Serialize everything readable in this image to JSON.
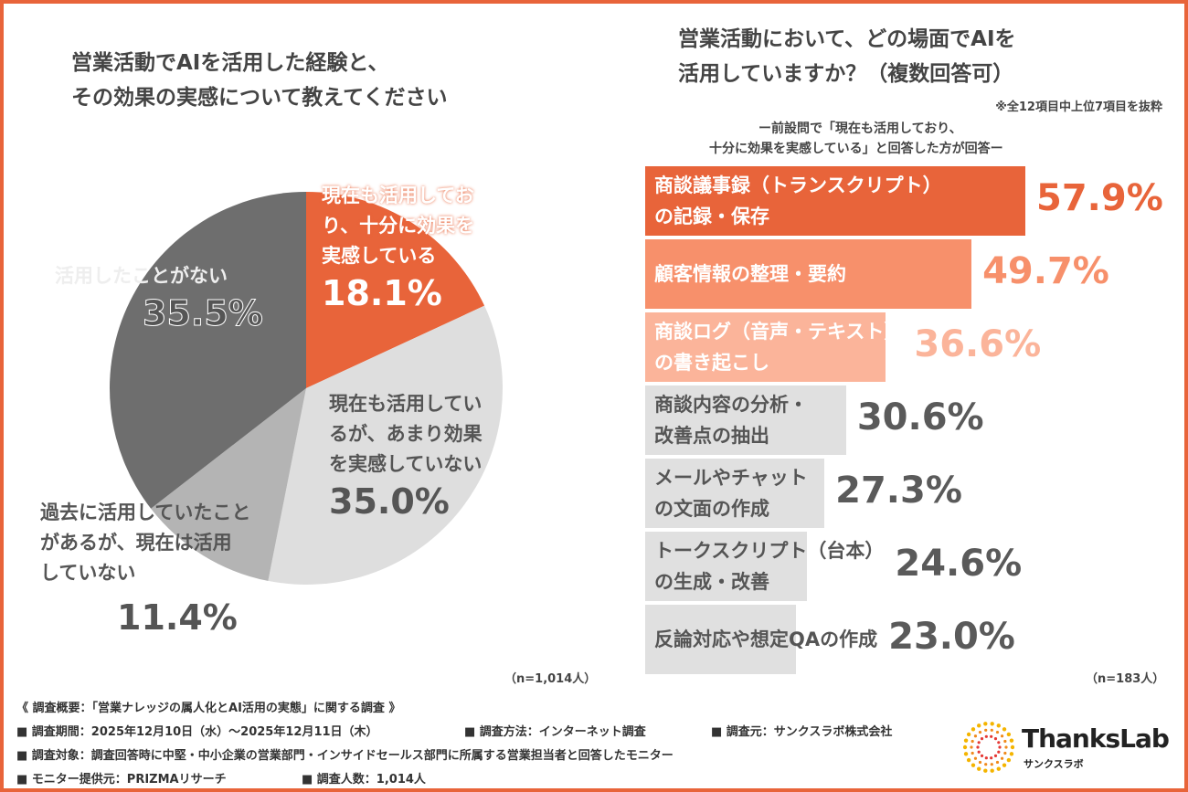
{
  "left": {
    "title": "営業活動でAIを活用した経験と、\nその効果の実感について教えてください",
    "n": "（n=1,014人）"
  },
  "right": {
    "title": "営業活動において、どの場面でAIを\n活用していますか？（複数回答可）",
    "note": "※全12項目中上位7項目を抜粋",
    "subnote1": "ー前設問で「現在も活用しており、",
    "subnote2": "十分に効果を実感している」と回答した方が回答ー",
    "n": "（n=183人）"
  },
  "chart_data": [
    {
      "type": "pie",
      "title": "営業活動でAIを活用した経験と、その効果の実感について教えてください",
      "slices": [
        {
          "label": "現在も活用しており、十分に効果を実感している",
          "value": 18.1,
          "display": "18.1%",
          "color": "#e8643a"
        },
        {
          "label": "現在も活用しているが、あまり効果を実感していない",
          "value": 35.0,
          "display": "35.0%",
          "color": "#dedede"
        },
        {
          "label": "過去に活用していたことがあるが、現在は活用していない",
          "value": 11.4,
          "display": "11.4%",
          "color": "#b4b4b4"
        },
        {
          "label": "活用したことがない",
          "value": 35.5,
          "display": "35.5%",
          "color": "#6e6e6e"
        }
      ]
    },
    {
      "type": "bar",
      "orientation": "horizontal",
      "title": "営業活動において、どの場面でAIを活用していますか？（複数回答可）",
      "categories": [
        "商談議事録（トランスクリプト）\nの記録・保存",
        "顧客情報の整理・要約",
        "商談ログ（音声・テキスト）\nの書き起こし",
        "商談内容の分析・\n改善点の抽出",
        "メールやチャット\nの文面の作成",
        "トークスクリプト（台本）\nの生成・改善",
        "反論対応や想定QAの作成"
      ],
      "values": [
        57.9,
        49.7,
        36.6,
        30.6,
        27.3,
        24.6,
        23.0
      ],
      "display": [
        "57.9%",
        "49.7%",
        "36.6%",
        "30.6%",
        "27.3%",
        "24.6%",
        "23.0%"
      ],
      "colors": [
        "#e8643a",
        "#f7906b",
        "#fbb49a",
        "#e0e0e0",
        "#e0e0e0",
        "#e0e0e0",
        "#e0e0e0"
      ],
      "text_colors": [
        "#ffffff",
        "#ffffff",
        "#ffffff",
        "#555555",
        "#555555",
        "#555555",
        "#555555"
      ],
      "pct_colors": [
        "#e8643a",
        "#f7906b",
        "#fbb49a",
        "#5a5a5a",
        "#5a5a5a",
        "#5a5a5a",
        "#5a5a5a"
      ]
    }
  ],
  "footer": {
    "l1": "《 調査概要：「営業ナレッジの属人化とAI活用の実態」に関する調査 》",
    "l2a": "■ 調査期間：2025年12月10日（水）〜2025年12月11日（木）",
    "l2b": "■ 調査方法：インターネット調査",
    "l2c": "■ 調査元：サンクスラボ株式会社",
    "l3": "■ 調査対象：調査回答時に中堅・中小企業の営業部門・インサイドセールス部門に所属する営業担当者と回答したモニター",
    "l4a": "■ モニター提供元：PRIZMAリサーチ",
    "l4b": "■ 調査人数：1,014人"
  },
  "logo": {
    "name": "ThanksLab",
    "kana": "サンクスラボ"
  }
}
